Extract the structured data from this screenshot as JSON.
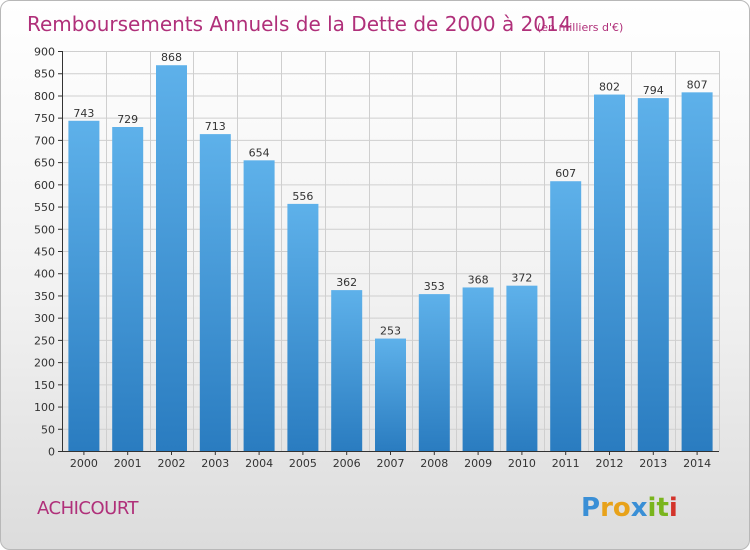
{
  "chart_data": {
    "type": "bar",
    "title": "Remboursements Annuels de la Dette de 2000 à 2014",
    "subtitle": "(en milliers d'€)",
    "categories": [
      "2000",
      "2001",
      "2002",
      "2003",
      "2004",
      "2005",
      "2006",
      "2007",
      "2008",
      "2009",
      "2010",
      "2011",
      "2012",
      "2013",
      "2014"
    ],
    "values": [
      743,
      729,
      868,
      713,
      654,
      556,
      362,
      253,
      353,
      368,
      372,
      607,
      802,
      794,
      807
    ],
    "xlabel": "",
    "ylabel": "",
    "ylim": [
      0,
      900
    ],
    "yticks": [
      0,
      50,
      100,
      150,
      200,
      250,
      300,
      350,
      400,
      450,
      500,
      550,
      600,
      650,
      700,
      750,
      800,
      850,
      900
    ],
    "grid": true,
    "legend": "none",
    "bar_color_top": "#5eb1ea",
    "bar_color_bottom": "#2a7cc0"
  },
  "commune": "ACHICOURT",
  "logo": {
    "letters": [
      "P",
      "r",
      "o",
      "x",
      "i",
      "t",
      "i"
    ],
    "colors": [
      "#3a8fd6",
      "#e8a21a",
      "#e8a21a",
      "#3a8fd6",
      "#7ab51d",
      "#7ab51d",
      "#d3342b"
    ]
  },
  "colors": {
    "title": "#b0307a",
    "axis": "#333333",
    "grid": "#cfcfcf"
  }
}
